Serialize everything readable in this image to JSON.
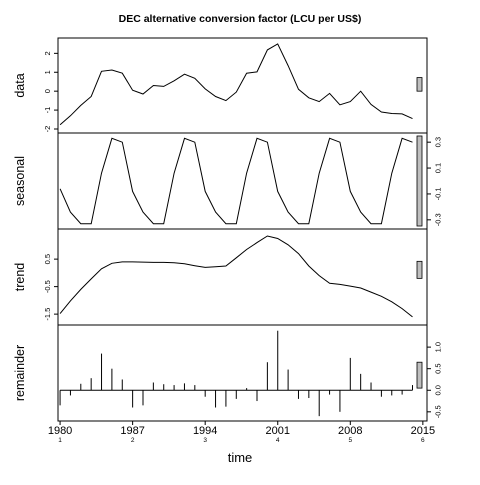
{
  "chart_data": {
    "type": "line",
    "title": "DEC alternative conversion factor (LCU per US$)",
    "xlabel": "time",
    "x_ticks": [
      {
        "value": 1980,
        "label": "1980",
        "period": "1"
      },
      {
        "value": 1987,
        "label": "1987",
        "period": "2"
      },
      {
        "value": 1994,
        "label": "1994",
        "period": "3"
      },
      {
        "value": 2001,
        "label": "2001",
        "period": "4"
      },
      {
        "value": 2008,
        "label": "2008",
        "period": "5"
      },
      {
        "value": 2015,
        "label": "2015",
        "period": "6"
      }
    ],
    "x": [
      1980,
      1981,
      1982,
      1983,
      1984,
      1985,
      1986,
      1987,
      1988,
      1989,
      1990,
      1991,
      1992,
      1993,
      1994,
      1995,
      1996,
      1997,
      1998,
      1999,
      2000,
      2001,
      2002,
      2003,
      2004,
      2005,
      2006,
      2007,
      2008,
      2009,
      2010,
      2011,
      2012,
      2013,
      2014
    ],
    "xlim": [
      1979.8,
      2015.4
    ],
    "panels": [
      {
        "ylabel": "data",
        "style": "line",
        "ylim": [
          -2.0,
          2.6
        ],
        "yticks": [
          -2,
          -1,
          0,
          1,
          2
        ],
        "tick_labels": [
          "-2",
          "-1",
          "0",
          "1",
          "2"
        ],
        "values": [
          -1.78,
          -1.3,
          -0.75,
          -0.28,
          1.05,
          1.12,
          0.95,
          0.05,
          -0.15,
          0.3,
          0.25,
          0.55,
          0.9,
          0.68,
          0.12,
          -0.28,
          -0.5,
          -0.05,
          0.95,
          1.02,
          2.18,
          2.5,
          1.35,
          0.1,
          -0.35,
          -0.55,
          -0.12,
          -0.72,
          -0.55,
          0.0,
          -0.7,
          -1.1,
          -1.18,
          -1.2,
          -1.45
        ]
      },
      {
        "ylabel": "seasonal",
        "style": "line",
        "ylim": [
          -0.34,
          0.34
        ],
        "yticks": [
          -0.3,
          -0.1,
          0.1,
          0.3
        ],
        "tick_labels": [
          "-0.3",
          "-0.1",
          "0.1",
          "0.3"
        ],
        "values": [
          -0.06,
          -0.24,
          -0.33,
          -0.33,
          0.06,
          0.33,
          0.3,
          -0.08,
          -0.24,
          -0.33,
          -0.33,
          0.06,
          0.33,
          0.3,
          -0.08,
          -0.24,
          -0.33,
          -0.33,
          0.06,
          0.33,
          0.3,
          -0.08,
          -0.24,
          -0.33,
          -0.33,
          0.06,
          0.33,
          0.3,
          -0.08,
          -0.24,
          -0.33,
          -0.33,
          0.06,
          0.33,
          0.3
        ]
      },
      {
        "ylabel": "trend",
        "style": "line",
        "ylim": [
          -1.75,
          1.45
        ],
        "yticks": [
          -1.5,
          -0.5,
          0.5
        ],
        "tick_labels": [
          "-1.5",
          "-0.5",
          "0.5"
        ],
        "values": [
          -1.48,
          -1.02,
          -0.6,
          -0.22,
          0.15,
          0.35,
          0.4,
          0.4,
          0.39,
          0.38,
          0.38,
          0.37,
          0.33,
          0.26,
          0.2,
          0.22,
          0.25,
          0.55,
          0.85,
          1.1,
          1.34,
          1.25,
          1.02,
          0.7,
          0.25,
          -0.1,
          -0.38,
          -0.42,
          -0.48,
          -0.55,
          -0.7,
          -0.85,
          -1.05,
          -1.3,
          -1.6
        ]
      },
      {
        "ylabel": "remainder",
        "style": "spikes",
        "ylim": [
          -0.62,
          1.42
        ],
        "yticks": [
          -0.5,
          0.0,
          0.5,
          1.0
        ],
        "tick_labels": [
          "-0.5",
          "0.0",
          "0.5",
          "1.0"
        ],
        "values": [
          -0.35,
          -0.12,
          0.15,
          0.28,
          0.85,
          0.5,
          0.25,
          -0.4,
          -0.35,
          0.18,
          0.14,
          0.12,
          0.16,
          0.12,
          -0.15,
          -0.4,
          -0.38,
          -0.2,
          0.05,
          -0.25,
          0.65,
          1.38,
          0.48,
          -0.2,
          -0.18,
          -0.6,
          -0.1,
          -0.5,
          0.75,
          0.38,
          0.18,
          -0.15,
          -0.12,
          -0.1,
          0.12
        ]
      }
    ]
  }
}
